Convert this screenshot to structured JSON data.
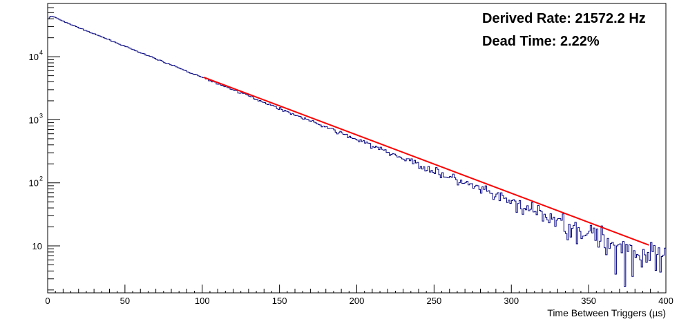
{
  "chart_data": {
    "type": "line",
    "title": "",
    "xlabel": "Time Between Triggers (µs)",
    "ylabel": "",
    "xlim": [
      0,
      400
    ],
    "ylim": [
      1.8,
      70000
    ],
    "yscale": "log",
    "grid": false,
    "x_ticks": [
      0,
      50,
      100,
      150,
      200,
      250,
      300,
      350,
      400
    ],
    "y_ticks": [
      {
        "value": 10,
        "label": "10"
      },
      {
        "value": 100,
        "label": "10",
        "exp": "2"
      },
      {
        "value": 1000,
        "label": "10",
        "exp": "3"
      },
      {
        "value": 10000,
        "label": "10",
        "exp": "4"
      }
    ],
    "series": [
      {
        "kind": "histogram",
        "color": "#00007f",
        "bin_width": 1,
        "points": [
          [
            0,
            38000
          ],
          [
            1,
            41500
          ],
          [
            2,
            44000
          ],
          [
            3,
            43500
          ],
          [
            4,
            43000
          ],
          [
            5,
            42000
          ],
          [
            10,
            36500
          ],
          [
            20,
            29000
          ],
          [
            30,
            23000
          ],
          [
            40,
            18500
          ],
          [
            50,
            14600
          ],
          [
            60,
            11600
          ],
          [
            70,
            9300
          ],
          [
            80,
            7400
          ],
          [
            90,
            5900
          ],
          [
            100,
            4700
          ],
          [
            110,
            3750
          ],
          [
            120,
            3000
          ],
          [
            130,
            2400
          ],
          [
            140,
            1900
          ],
          [
            150,
            1510
          ],
          [
            160,
            1200
          ],
          [
            170,
            960
          ],
          [
            180,
            765
          ],
          [
            190,
            610
          ],
          [
            200,
            485
          ],
          [
            210,
            386
          ],
          [
            220,
            307
          ],
          [
            230,
            244
          ],
          [
            240,
            195
          ],
          [
            250,
            155
          ],
          [
            260,
            123
          ],
          [
            270,
            98
          ],
          [
            280,
            78
          ],
          [
            290,
            62
          ],
          [
            300,
            50
          ],
          [
            310,
            39
          ],
          [
            320,
            31
          ],
          [
            330,
            25
          ],
          [
            340,
            20
          ],
          [
            350,
            16
          ],
          [
            360,
            12.6
          ],
          [
            370,
            10
          ],
          [
            380,
            8
          ],
          [
            390,
            6.4
          ],
          [
            400,
            5.1
          ]
        ]
      },
      {
        "kind": "fit",
        "color": "#ff0000",
        "x_range": [
          101,
          389
        ],
        "y_range": [
          4720,
          10.3
        ]
      }
    ],
    "annotations": [
      {
        "text": "Derived Rate: 21572.2 Hz",
        "color": "#ff0000"
      },
      {
        "text": "Dead Time: 2.22%",
        "color": "#ff0000"
      }
    ]
  }
}
